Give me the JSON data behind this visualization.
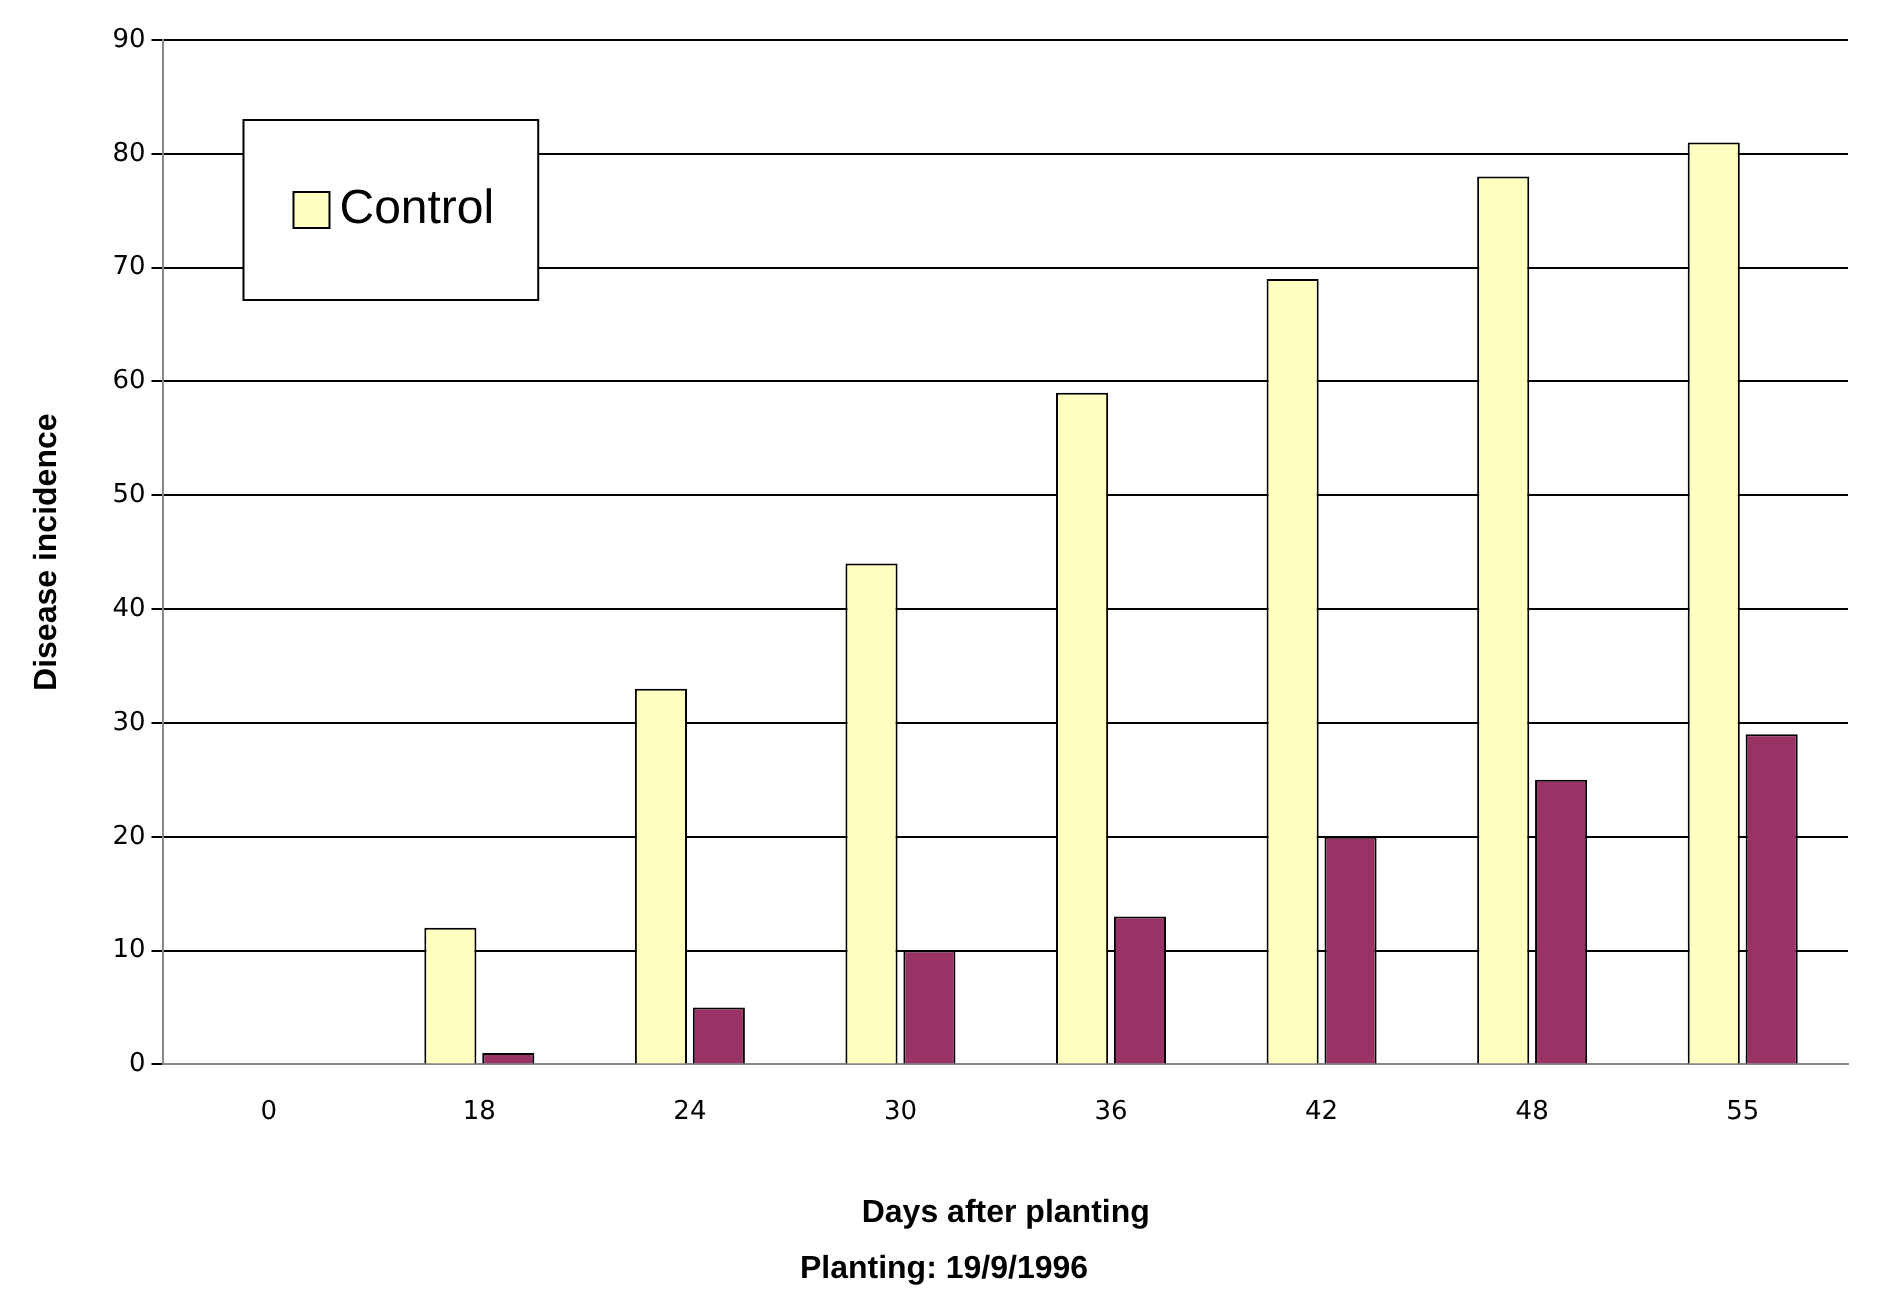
{
  "chart_data": {
    "type": "bar",
    "xlabel": "Days after planting",
    "ylabel": "Disease incidence",
    "annotations": [
      "Planting: 19/9/1996"
    ],
    "categories": [
      "0",
      "18",
      "24",
      "30",
      "36",
      "42",
      "48",
      "55"
    ],
    "series": [
      {
        "name": "Control",
        "color": "#ffffc0",
        "values": [
          0,
          12,
          33,
          44,
          59,
          69,
          78,
          81
        ]
      },
      {
        "color": "#993366",
        "values": [
          0,
          1,
          5,
          10,
          13,
          20,
          25,
          29
        ]
      }
    ],
    "ylim": [
      0,
      90
    ],
    "yticks": [
      0,
      10,
      20,
      30,
      40,
      50,
      60,
      70,
      80,
      90
    ],
    "grid": "y",
    "legend": "top left"
  }
}
